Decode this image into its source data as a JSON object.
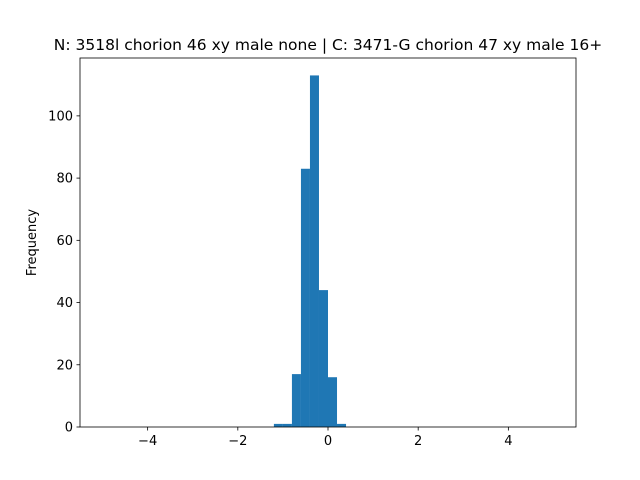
{
  "chart_data": {
    "type": "histogram",
    "title": "N: 3518l chorion 46 xy male none | C: 3471-G chorion 47 xy male 16+",
    "y_label": "Frequency",
    "bins": [
      -1.2,
      -1.0,
      -0.8,
      -0.6,
      -0.4,
      -0.2,
      0.0,
      0.2,
      0.4
    ],
    "values": [
      1,
      1,
      17,
      83,
      113,
      44,
      16,
      1
    ],
    "color": "#1f77b4",
    "xlim": [
      -5.5,
      5.5
    ],
    "ylim": [
      0,
      118.6
    ],
    "xticks": [
      {
        "value": -4,
        "label": "−4"
      },
      {
        "value": -2,
        "label": "−2"
      },
      0,
      2,
      4
    ],
    "yticks": [
      0,
      20,
      40,
      60,
      80,
      100
    ]
  }
}
